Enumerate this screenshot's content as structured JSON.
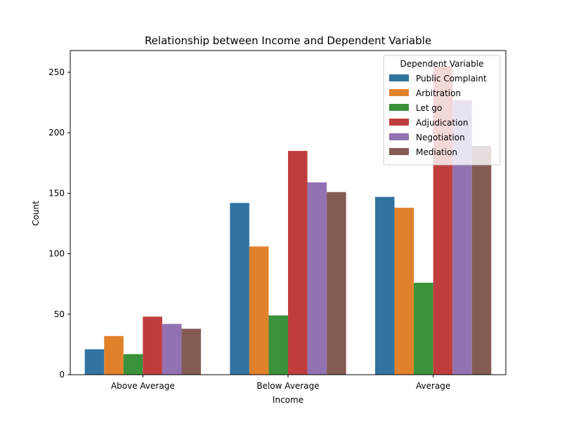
{
  "chart_data": {
    "type": "bar",
    "title": "Relationship between Income and Dependent Variable",
    "xlabel": "Income",
    "ylabel": "Count",
    "categories": [
      "Above Average",
      "Below Average",
      "Average"
    ],
    "ylim": [
      0,
      268
    ],
    "yticks": [
      0,
      50,
      100,
      150,
      200,
      250
    ],
    "grid": false,
    "legend": {
      "title": "Dependent Variable",
      "placement": "top-right"
    },
    "series": [
      {
        "name": "Public Complaint",
        "color": "#3274a1",
        "values": [
          21,
          142,
          147
        ]
      },
      {
        "name": "Arbitration",
        "color": "#e1812c",
        "values": [
          32,
          106,
          138
        ]
      },
      {
        "name": "Let go",
        "color": "#3a923a",
        "values": [
          17,
          49,
          76
        ]
      },
      {
        "name": "Adjudication",
        "color": "#c03d3e",
        "values": [
          48,
          185,
          255
        ]
      },
      {
        "name": "Negotiation",
        "color": "#9372b2",
        "values": [
          42,
          159,
          227
        ]
      },
      {
        "name": "Mediation",
        "color": "#845b53",
        "values": [
          38,
          151,
          189
        ]
      }
    ]
  }
}
